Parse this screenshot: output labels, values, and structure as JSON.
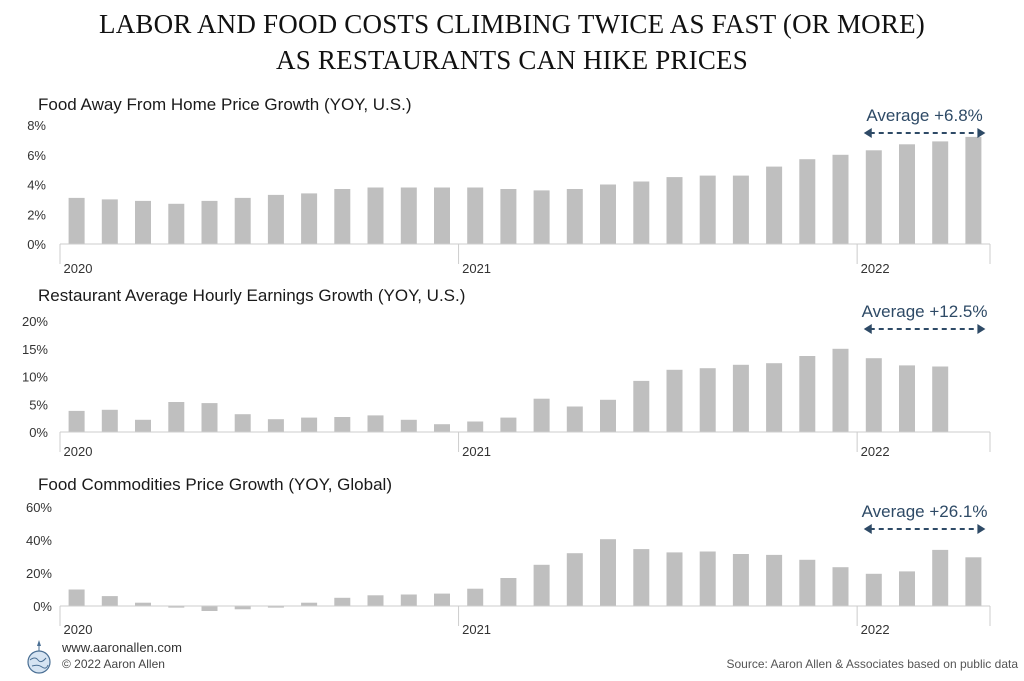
{
  "title": {
    "line1": "LABOR AND FOOD COSTS CLIMBING TWICE AS FAST (OR MORE)",
    "line2": "AS RESTAURANTS CAN HIKE PRICES"
  },
  "footer": {
    "url": "www.aaronallen.com",
    "copyright": "© 2022 Aaron Allen",
    "source": "Source: Aaron Allen & Associates based on public data"
  },
  "colors": {
    "bar": "#bfbfbf",
    "axis": "#cccccc",
    "annotation": "#2e4a66"
  },
  "chart_data": [
    {
      "type": "bar",
      "title": "Food Away From Home Price Growth (YOY, U.S.)",
      "x_tick_labels": [
        "2020",
        "2021",
        "2022"
      ],
      "x_tick_positions": [
        0,
        12,
        24
      ],
      "y_tick_labels": [
        "0%",
        "2%",
        "4%",
        "6%",
        "8%"
      ],
      "ylim": [
        0,
        8
      ],
      "values": [
        3.1,
        3.0,
        2.9,
        2.7,
        2.9,
        3.1,
        3.3,
        3.4,
        3.7,
        3.8,
        3.8,
        3.8,
        3.8,
        3.7,
        3.6,
        3.7,
        4.0,
        4.2,
        4.5,
        4.6,
        4.6,
        5.2,
        5.7,
        6.0,
        6.3,
        6.7,
        6.9,
        7.2
      ],
      "annotation": {
        "label": "Average +6.8%",
        "from_index": 24,
        "to_index": 27
      }
    },
    {
      "type": "bar",
      "title": "Restaurant Average Hourly Earnings Growth (YOY, U.S.)",
      "x_tick_labels": [
        "2020",
        "2021",
        "2022"
      ],
      "x_tick_positions": [
        0,
        12,
        24
      ],
      "y_tick_labels": [
        "0%",
        "5%",
        "10%",
        "15%",
        "20%"
      ],
      "ylim": [
        0,
        20
      ],
      "values": [
        3.8,
        4.0,
        2.2,
        5.4,
        5.2,
        3.2,
        2.3,
        2.6,
        2.7,
        3.0,
        2.2,
        1.4,
        1.9,
        2.6,
        6.0,
        4.6,
        5.8,
        9.2,
        11.2,
        11.5,
        12.1,
        12.4,
        13.7,
        15.0,
        13.3,
        12.0,
        11.8
      ],
      "annotation": {
        "label": "Average +12.5%",
        "from_index": 24,
        "to_index": 27
      }
    },
    {
      "type": "bar",
      "title": "Food Commodities Price Growth (YOY, Global)",
      "x_tick_labels": [
        "2020",
        "2021",
        "2022"
      ],
      "x_tick_positions": [
        0,
        12,
        24
      ],
      "y_tick_labels": [
        "0%",
        "20%",
        "40%",
        "60%"
      ],
      "ylim": [
        0,
        60
      ],
      "values": [
        10,
        6,
        2,
        -1,
        -3,
        -2,
        -1,
        2,
        5,
        6.5,
        7,
        7.5,
        10.5,
        17,
        25,
        32,
        40.5,
        34.5,
        32.5,
        33,
        31.5,
        31,
        28,
        23.5,
        19.5,
        21,
        34,
        29.5
      ],
      "annotation": {
        "label": "Average +26.1%",
        "from_index": 24,
        "to_index": 27
      }
    }
  ]
}
